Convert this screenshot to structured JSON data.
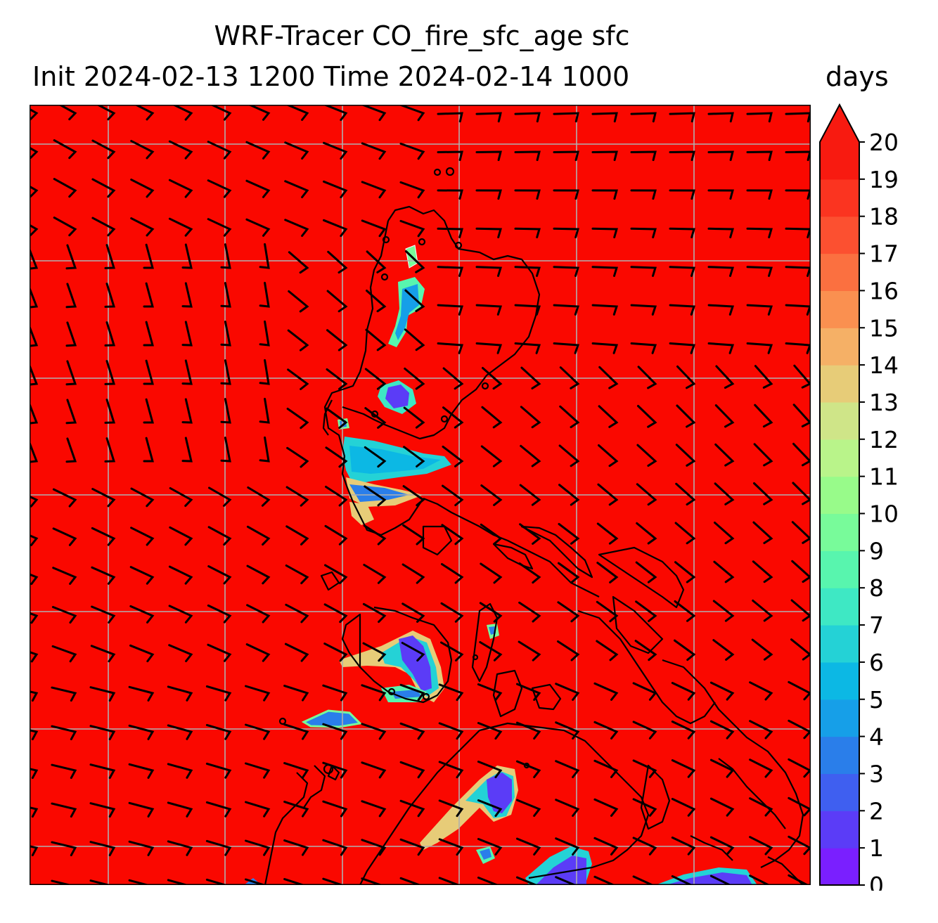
{
  "title": {
    "line1": "WRF-Tracer CO_fire_sfc_age sfc",
    "line2": "Init 2024-02-13 1200 Time 2024-02-14 1000",
    "units": "days"
  },
  "map": {
    "field": "CO_fire_sfc_age",
    "level": "sfc",
    "background_value": 20,
    "gridlines": true,
    "overlays": [
      "coastlines",
      "wind-barbs"
    ]
  },
  "colorbar": {
    "min": 0,
    "max": 20,
    "extend": "max",
    "tick_labels": [
      "0",
      "1",
      "2",
      "3",
      "4",
      "5",
      "6",
      "7",
      "8",
      "9",
      "10",
      "11",
      "12",
      "13",
      "14",
      "15",
      "16",
      "17",
      "18",
      "19",
      "20"
    ],
    "colors": [
      "#7a1fff",
      "#5b3cf7",
      "#3f5ff0",
      "#2a7eea",
      "#169fe8",
      "#0cb8e4",
      "#24d2d6",
      "#3ee8c4",
      "#58f5ae",
      "#78fb9a",
      "#98fb8a",
      "#b9f48a",
      "#cfe588",
      "#e7cc78",
      "#f5b066",
      "#fa9050",
      "#fb7040",
      "#fc5030",
      "#fb3420",
      "#f81a10"
    ],
    "extend_color": "#f81a10"
  },
  "colors": {
    "field_bg": "#fa0800",
    "grid": "#b0b0b0",
    "coast": "#000000"
  }
}
